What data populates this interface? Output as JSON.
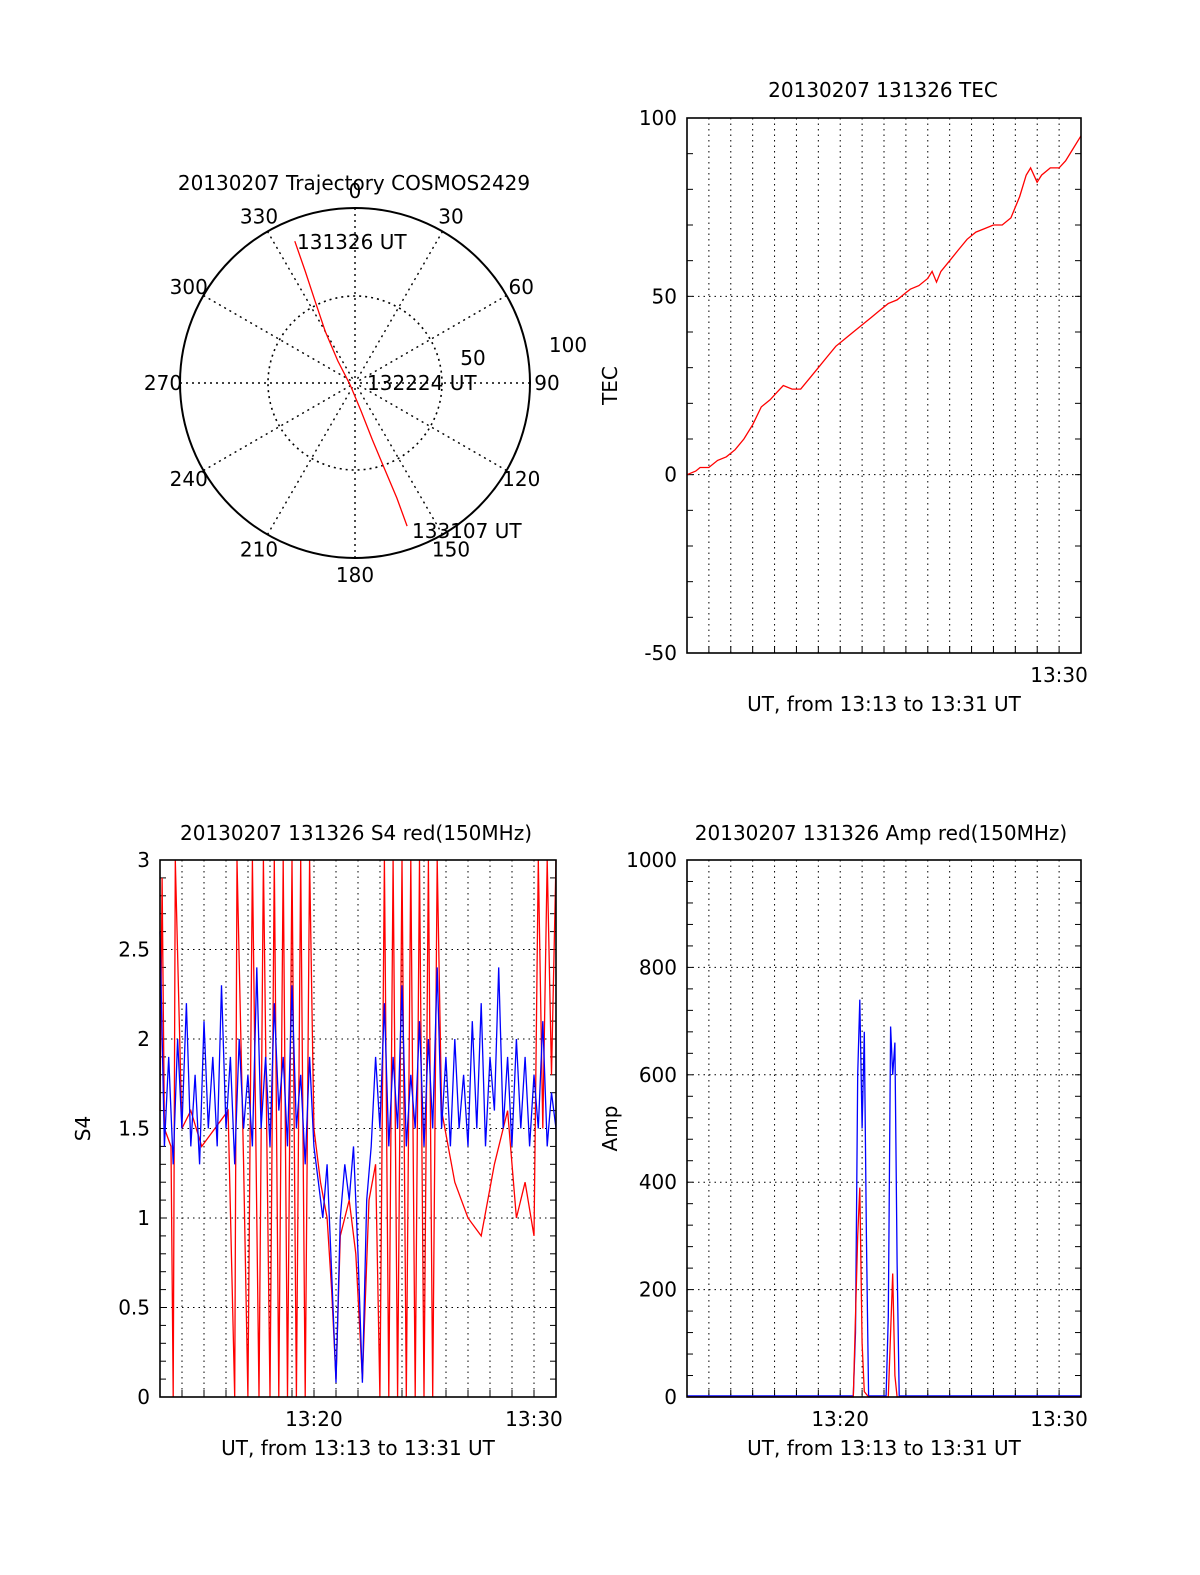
{
  "chart_data": [
    {
      "type": "polar",
      "title": "20130207 Trajectory COSMOS2429",
      "angle_labels": [
        "0",
        "30",
        "60",
        "90",
        "120",
        "150",
        "180",
        "210",
        "240",
        "270",
        "300",
        "330"
      ],
      "radial_labels": [
        "50",
        "100"
      ],
      "track_start_label": "131326 UT",
      "track_mid_label": "132224 UT",
      "track_end_label": "133107 UT",
      "track_color": "#ff0000",
      "track": [
        {
          "az": 337,
          "r": 88
        },
        {
          "az": 336,
          "r": 70
        },
        {
          "az": 334,
          "r": 52
        },
        {
          "az": 330,
          "r": 34
        },
        {
          "az": 322,
          "r": 16
        },
        {
          "az": 250,
          "r": 3
        },
        {
          "az": 168,
          "r": 16
        },
        {
          "az": 163,
          "r": 34
        },
        {
          "az": 161,
          "r": 52
        },
        {
          "az": 160,
          "r": 70
        },
        {
          "az": 160,
          "r": 87
        }
      ]
    },
    {
      "type": "line",
      "title": "20130207 131326 TEC",
      "xlabel": "UT, from 13:13 to 13:31 UT",
      "ylabel": "TEC",
      "xlim": [
        13.2167,
        13.5167
      ],
      "ylim": [
        -50,
        100
      ],
      "yticks": [
        -50,
        0,
        50,
        100
      ],
      "xticks": [
        {
          "x": 13.5,
          "label": "13:30"
        }
      ],
      "grid": true,
      "series": [
        {
          "color": "#ff0000",
          "points": [
            [
              13.2167,
              0
            ],
            [
              13.2233,
              1
            ],
            [
              13.2267,
              2
            ],
            [
              13.2333,
              2
            ],
            [
              13.24,
              4
            ],
            [
              13.2467,
              5
            ],
            [
              13.2533,
              7
            ],
            [
              13.26,
              10
            ],
            [
              13.2667,
              14
            ],
            [
              13.2733,
              19
            ],
            [
              13.2767,
              20
            ],
            [
              13.28,
              21
            ],
            [
              13.285,
              23
            ],
            [
              13.29,
              25
            ],
            [
              13.2967,
              24
            ],
            [
              13.3033,
              24
            ],
            [
              13.31,
              27
            ],
            [
              13.3167,
              30
            ],
            [
              13.3233,
              33
            ],
            [
              13.33,
              36
            ],
            [
              13.3367,
              38
            ],
            [
              13.3433,
              40
            ],
            [
              13.35,
              42
            ],
            [
              13.3567,
              44
            ],
            [
              13.3633,
              46
            ],
            [
              13.37,
              48
            ],
            [
              13.3767,
              49
            ],
            [
              13.3833,
              51
            ],
            [
              13.3867,
              52
            ],
            [
              13.3933,
              53
            ],
            [
              13.4,
              55
            ],
            [
              13.4033,
              57
            ],
            [
              13.4067,
              54
            ],
            [
              13.41,
              57
            ],
            [
              13.4167,
              60
            ],
            [
              13.4233,
              63
            ],
            [
              13.43,
              66
            ],
            [
              13.4367,
              68
            ],
            [
              13.4433,
              69
            ],
            [
              13.45,
              70
            ],
            [
              13.4567,
              70
            ],
            [
              13.4633,
              72
            ],
            [
              13.47,
              78
            ],
            [
              13.475,
              84
            ],
            [
              13.4783,
              86
            ],
            [
              13.4833,
              82
            ],
            [
              13.4867,
              84
            ],
            [
              13.4933,
              86
            ],
            [
              13.5,
              86
            ],
            [
              13.505,
              88
            ],
            [
              13.51,
              91
            ],
            [
              13.5167,
              95
            ]
          ]
        }
      ]
    },
    {
      "type": "line",
      "title": "20130207 131326 S4 red(150MHz)",
      "xlabel": "UT, from 13:13 to 13:31 UT",
      "ylabel": "S4",
      "xlim": [
        13.2167,
        13.5167
      ],
      "ylim": [
        0,
        3
      ],
      "yticks": [
        0,
        0.5,
        1,
        1.5,
        2,
        2.5,
        3
      ],
      "xticks": [
        {
          "x": 13.3333,
          "label": "13:20"
        },
        {
          "x": 13.5,
          "label": "13:30"
        }
      ],
      "grid": true,
      "series": [
        {
          "color": "#ff0000",
          "points": [
            [
              13.2167,
              1.6
            ],
            [
              13.2183,
              2.9
            ],
            [
              13.22,
              1.5
            ],
            [
              13.225,
              1.4
            ],
            [
              13.2267,
              0
            ],
            [
              13.2283,
              3
            ],
            [
              13.2333,
              1.5
            ],
            [
              13.24,
              1.6
            ],
            [
              13.2483,
              1.4
            ],
            [
              13.2583,
              1.5
            ],
            [
              13.2683,
              1.6
            ],
            [
              13.2733,
              0
            ],
            [
              13.275,
              3
            ],
            [
              13.28,
              1.3
            ],
            [
              13.2833,
              0
            ],
            [
              13.2867,
              3
            ],
            [
              13.2917,
              0
            ],
            [
              13.295,
              3
            ],
            [
              13.3,
              0
            ],
            [
              13.3033,
              3
            ],
            [
              13.3067,
              0
            ],
            [
              13.31,
              3
            ],
            [
              13.3133,
              0
            ],
            [
              13.3167,
              3
            ],
            [
              13.32,
              0
            ],
            [
              13.3233,
              3
            ],
            [
              13.3267,
              0
            ],
            [
              13.33,
              3
            ],
            [
              13.3333,
              1.5
            ],
            [
              13.3383,
              1.2
            ],
            [
              13.3433,
              1.0
            ],
            [
              13.3467,
              0.6
            ],
            [
              13.35,
              0.1
            ],
            [
              13.3533,
              0.9
            ],
            [
              13.36,
              1.1
            ],
            [
              13.365,
              0.8
            ],
            [
              13.37,
              0.1
            ],
            [
              13.375,
              1.1
            ],
            [
              13.38,
              1.3
            ],
            [
              13.3833,
              0
            ],
            [
              13.3867,
              3
            ],
            [
              13.39,
              0
            ],
            [
              13.3933,
              3
            ],
            [
              13.3967,
              0
            ],
            [
              13.4,
              3
            ],
            [
              13.4033,
              0
            ],
            [
              13.4067,
              3
            ],
            [
              13.41,
              0
            ],
            [
              13.4133,
              3
            ],
            [
              13.4167,
              0
            ],
            [
              13.42,
              3
            ],
            [
              13.4233,
              0
            ],
            [
              13.4267,
              3
            ],
            [
              13.43,
              1.6
            ],
            [
              13.44,
              1.2
            ],
            [
              13.45,
              1.0
            ],
            [
              13.46,
              0.9
            ],
            [
              13.47,
              1.3
            ],
            [
              13.48,
              1.6
            ],
            [
              13.4867,
              1.0
            ],
            [
              13.4933,
              1.2
            ],
            [
              13.5,
              0.9
            ],
            [
              13.5033,
              3
            ],
            [
              13.5067,
              1.5
            ],
            [
              13.51,
              3
            ],
            [
              13.5133,
              1.8
            ],
            [
              13.5167,
              3
            ]
          ]
        },
        {
          "color": "#0000ff",
          "points": [
            [
              13.2167,
              2.6
            ],
            [
              13.22,
              1.4
            ],
            [
              13.2233,
              1.9
            ],
            [
              13.2267,
              1.3
            ],
            [
              13.23,
              2.0
            ],
            [
              13.2333,
              1.5
            ],
            [
              13.2367,
              2.2
            ],
            [
              13.24,
              1.4
            ],
            [
              13.2433,
              1.8
            ],
            [
              13.2467,
              1.3
            ],
            [
              13.25,
              2.1
            ],
            [
              13.2533,
              1.5
            ],
            [
              13.2567,
              1.9
            ],
            [
              13.26,
              1.4
            ],
            [
              13.2633,
              2.3
            ],
            [
              13.2667,
              1.5
            ],
            [
              13.27,
              1.9
            ],
            [
              13.2733,
              1.3
            ],
            [
              13.2767,
              2.0
            ],
            [
              13.28,
              1.5
            ],
            [
              13.2833,
              1.8
            ],
            [
              13.2867,
              1.4
            ],
            [
              13.29,
              2.4
            ],
            [
              13.2933,
              1.5
            ],
            [
              13.2967,
              1.9
            ],
            [
              13.3,
              1.4
            ],
            [
              13.3033,
              2.2
            ],
            [
              13.3067,
              1.6
            ],
            [
              13.31,
              1.9
            ],
            [
              13.3133,
              1.4
            ],
            [
              13.3167,
              2.3
            ],
            [
              13.32,
              1.5
            ],
            [
              13.3233,
              1.8
            ],
            [
              13.3267,
              1.3
            ],
            [
              13.33,
              1.9
            ],
            [
              13.3333,
              1.4
            ],
            [
              13.3367,
              1.2
            ],
            [
              13.34,
              1.0
            ],
            [
              13.3433,
              1.3
            ],
            [
              13.3467,
              0.7
            ],
            [
              13.35,
              0.08
            ],
            [
              13.3533,
              1.0
            ],
            [
              13.3567,
              1.3
            ],
            [
              13.36,
              1.1
            ],
            [
              13.3633,
              1.4
            ],
            [
              13.3667,
              0.8
            ],
            [
              13.37,
              0.08
            ],
            [
              13.3733,
              1.1
            ],
            [
              13.3767,
              1.4
            ],
            [
              13.38,
              1.9
            ],
            [
              13.3833,
              1.5
            ],
            [
              13.3867,
              2.2
            ],
            [
              13.39,
              1.4
            ],
            [
              13.3933,
              1.9
            ],
            [
              13.3967,
              1.5
            ],
            [
              13.4,
              2.3
            ],
            [
              13.4033,
              1.4
            ],
            [
              13.4067,
              1.8
            ],
            [
              13.41,
              1.5
            ],
            [
              13.4133,
              2.1
            ],
            [
              13.4167,
              1.4
            ],
            [
              13.42,
              2.0
            ],
            [
              13.4233,
              1.5
            ],
            [
              13.4267,
              2.4
            ],
            [
              13.43,
              1.5
            ],
            [
              13.4333,
              1.9
            ],
            [
              13.4367,
              1.4
            ],
            [
              13.44,
              2.0
            ],
            [
              13.4433,
              1.5
            ],
            [
              13.4467,
              1.8
            ],
            [
              13.45,
              1.4
            ],
            [
              13.4533,
              2.1
            ],
            [
              13.4567,
              1.5
            ],
            [
              13.46,
              2.2
            ],
            [
              13.4633,
              1.4
            ],
            [
              13.4667,
              1.9
            ],
            [
              13.47,
              1.6
            ],
            [
              13.4733,
              2.4
            ],
            [
              13.4767,
              1.5
            ],
            [
              13.48,
              1.9
            ],
            [
              13.4833,
              1.4
            ],
            [
              13.4867,
              2.0
            ],
            [
              13.49,
              1.5
            ],
            [
              13.4933,
              1.9
            ],
            [
              13.4967,
              1.4
            ],
            [
              13.5,
              1.8
            ],
            [
              13.5033,
              1.5
            ],
            [
              13.5067,
              2.1
            ],
            [
              13.51,
              1.4
            ],
            [
              13.5133,
              1.7
            ],
            [
              13.5167,
              1.5
            ]
          ]
        }
      ]
    },
    {
      "type": "line",
      "title": "20130207 131326 Amp red(150MHz)",
      "xlabel": "UT, from 13:13 to 13:31 UT",
      "ylabel": "Amp",
      "xlim": [
        13.2167,
        13.5167
      ],
      "ylim": [
        0,
        1000
      ],
      "yticks": [
        0,
        200,
        400,
        600,
        800,
        1000
      ],
      "xticks": [
        {
          "x": 13.3333,
          "label": "13:20"
        },
        {
          "x": 13.5,
          "label": "13:30"
        }
      ],
      "grid": true,
      "series": [
        {
          "color": "#0000ff",
          "points": [
            [
              13.2167,
              2
            ],
            [
              13.3433,
              2
            ],
            [
              13.345,
              120
            ],
            [
              13.3467,
              600
            ],
            [
              13.3483,
              740
            ],
            [
              13.35,
              500
            ],
            [
              13.3517,
              680
            ],
            [
              13.3533,
              300
            ],
            [
              13.355,
              2
            ],
            [
              13.3683,
              2
            ],
            [
              13.37,
              150
            ],
            [
              13.3717,
              690
            ],
            [
              13.3733,
              600
            ],
            [
              13.375,
              660
            ],
            [
              13.3767,
              250
            ],
            [
              13.3783,
              2
            ],
            [
              13.5167,
              2
            ]
          ]
        },
        {
          "color": "#ff0000",
          "points": [
            [
              13.2167,
              0
            ],
            [
              13.3433,
              0
            ],
            [
              13.3467,
              300
            ],
            [
              13.3483,
              390
            ],
            [
              13.35,
              100
            ],
            [
              13.3517,
              10
            ],
            [
              13.355,
              0
            ],
            [
              13.37,
              0
            ],
            [
              13.3717,
              120
            ],
            [
              13.3733,
              230
            ],
            [
              13.375,
              40
            ],
            [
              13.3767,
              0
            ],
            [
              13.5167,
              0
            ]
          ]
        }
      ]
    }
  ]
}
